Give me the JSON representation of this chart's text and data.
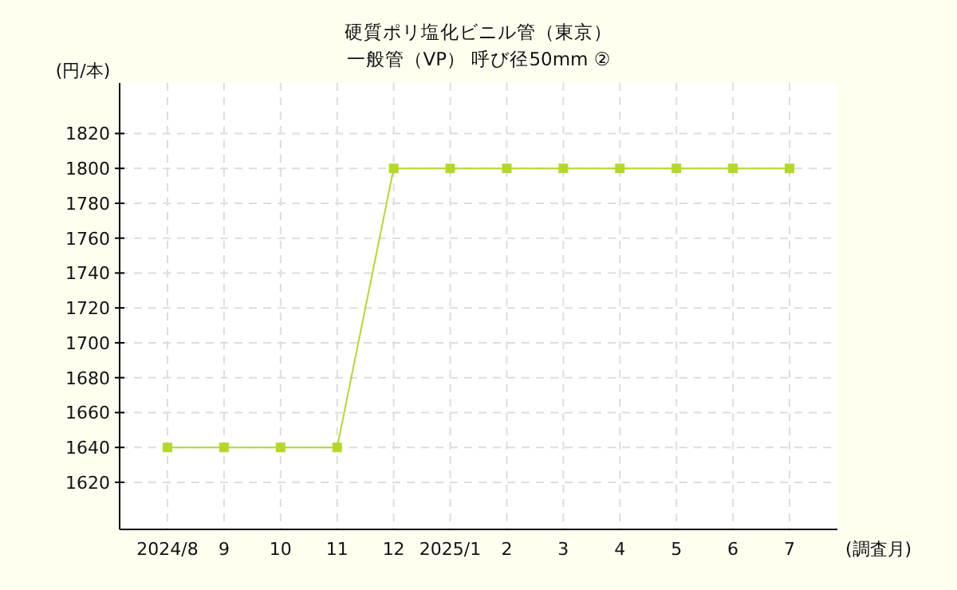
{
  "chart_data": {
    "type": "line",
    "title": "硬質ポリ塩化ビニル管（東京）",
    "subtitle": "一般管（VP） 呼び径50mm ②",
    "ylabel": "(円/本)",
    "xlabel": "(調査月)",
    "categories": [
      "2024/8",
      "9",
      "10",
      "11",
      "12",
      "2025/1",
      "2",
      "3",
      "4",
      "5",
      "6",
      "7"
    ],
    "series": [
      {
        "color": "#b4d82a",
        "values": [
          1640,
          1640,
          1640,
          1640,
          1800,
          1800,
          1800,
          1800,
          1800,
          1800,
          1800,
          1800
        ]
      }
    ],
    "ylim": [
      1593,
      1849
    ],
    "yticks": [
      1620,
      1640,
      1660,
      1680,
      1700,
      1720,
      1740,
      1760,
      1780,
      1800,
      1820
    ],
    "grid": true,
    "marker": "square"
  }
}
